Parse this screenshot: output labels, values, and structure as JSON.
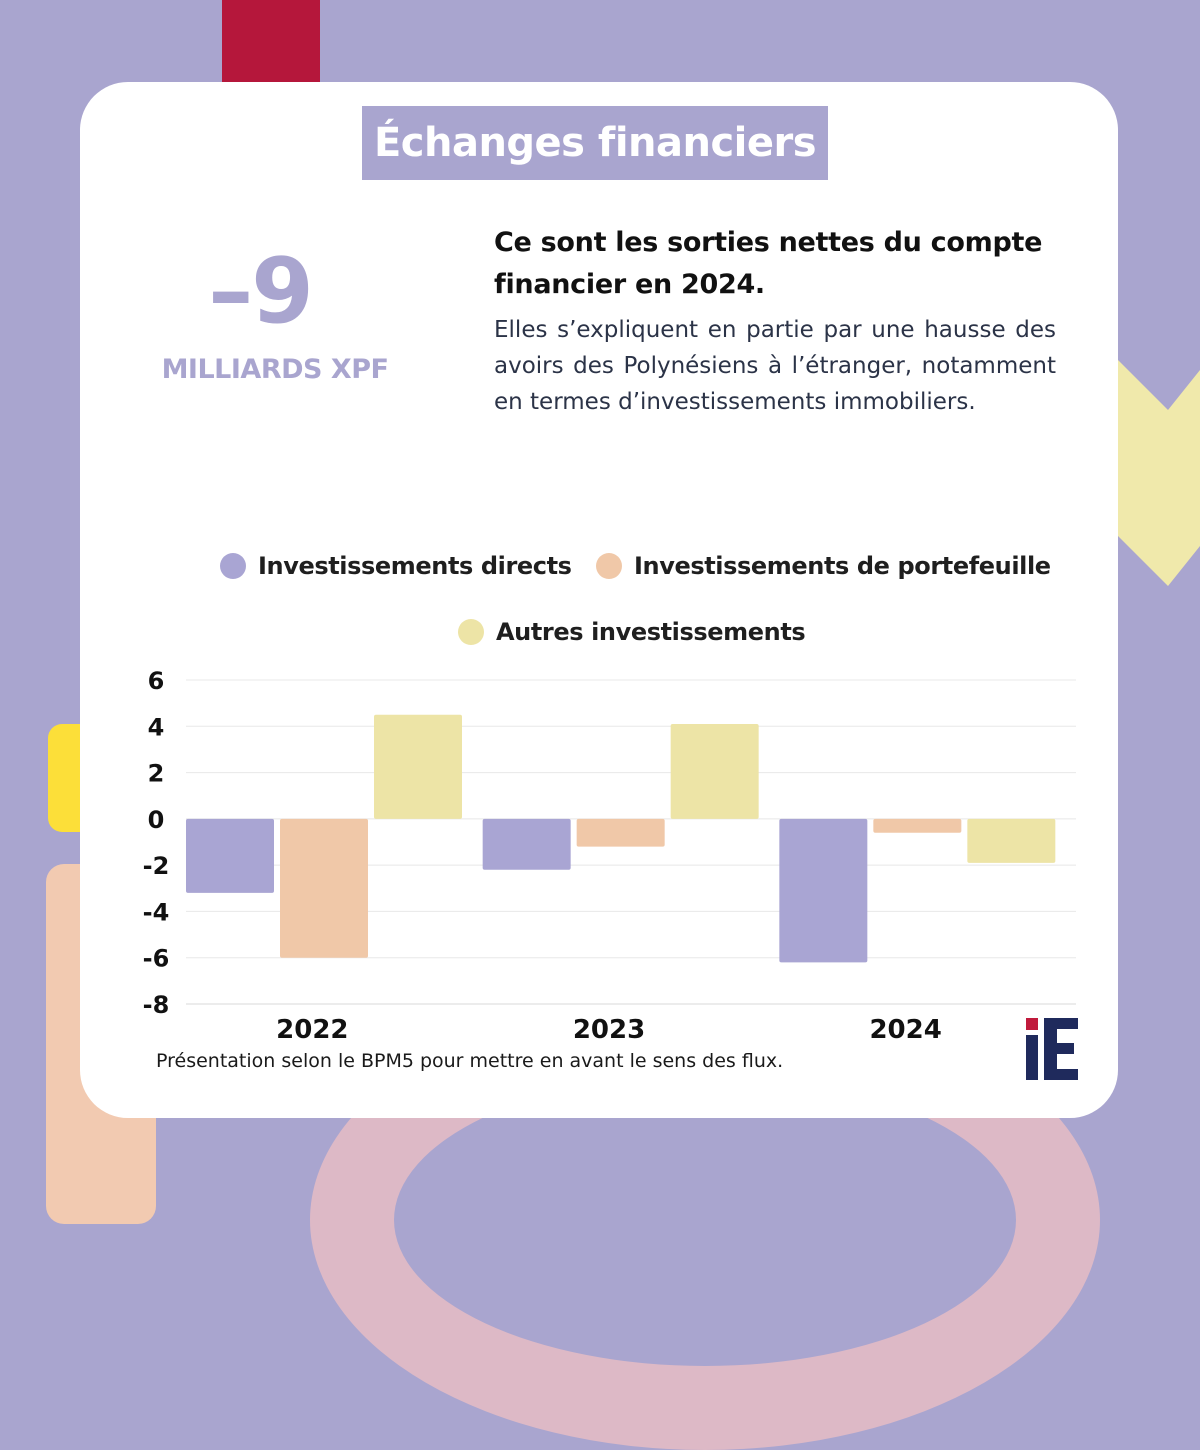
{
  "colors": {
    "background": "#a9a5cf",
    "card": "#ffffff",
    "accent_red": "#b5173b",
    "accent_yellow": "#fcdf39",
    "accent_peach": "#f2cab1",
    "accent_pink": "#ddb9c6",
    "chevron": "#f0e9ab"
  },
  "header": {
    "title": "Échanges financiers"
  },
  "kpi": {
    "value": "–9",
    "unit": "MILLIARDS XPF"
  },
  "text": {
    "headline": "Ce sont les sorties nettes du compte financier en 2024.",
    "body": "Elles s’expliquent en partie par une hausse des avoirs des Polynésiens à l’étranger, notamment en termes d’investissements immobiliers."
  },
  "footnote": "Présentation selon le BPM5 pour mettre en avant le sens des flux.",
  "logo": {
    "icon": "ie-logo-icon",
    "text": "iE"
  },
  "chart_data": {
    "type": "bar",
    "categories": [
      "2022",
      "2023",
      "2024"
    ],
    "series": [
      {
        "name": "Investissements directs",
        "color": "#a9a5d3",
        "values": [
          -3.2,
          -2.2,
          -6.2
        ]
      },
      {
        "name": "Investissements de portefeuille",
        "color": "#f0c8a8",
        "values": [
          -6.0,
          -1.2,
          -0.6
        ]
      },
      {
        "name": "Autres investissements",
        "color": "#ede4a6",
        "values": [
          4.5,
          4.1,
          -1.9
        ]
      }
    ],
    "ylim": [
      -8,
      6
    ],
    "yticks": [
      6,
      4,
      2,
      0,
      -2,
      -4,
      -6,
      -8
    ],
    "grid": true,
    "legend": "top"
  }
}
